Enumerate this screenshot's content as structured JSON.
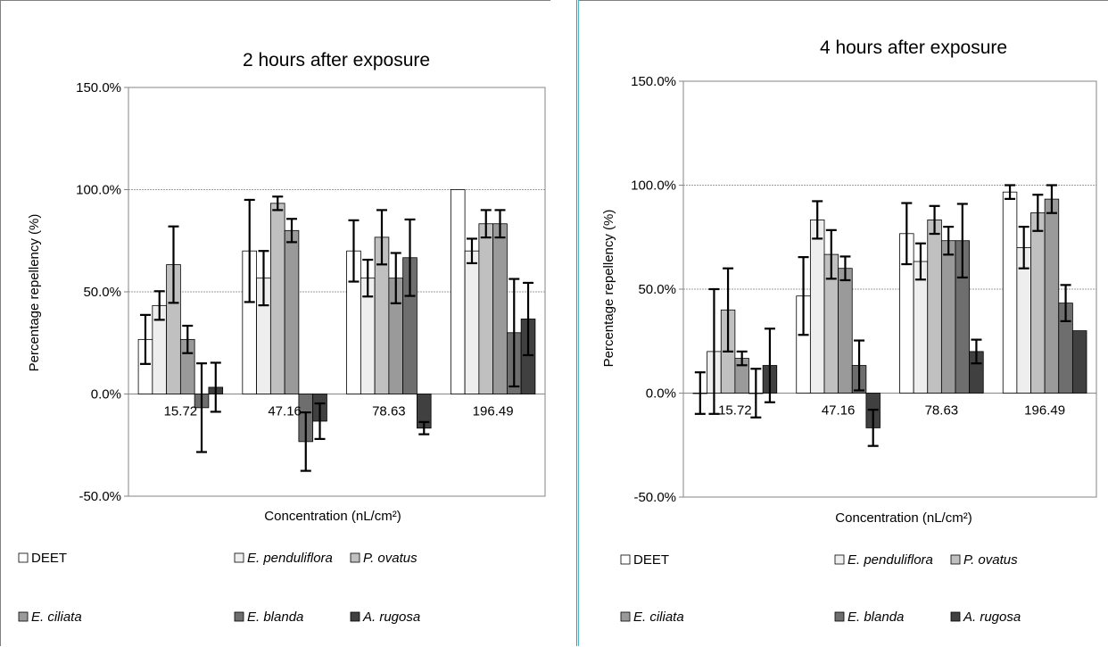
{
  "chart_data": [
    {
      "type": "bar",
      "title": "2 hours after exposure",
      "xlabel": "Concentration (nL/cm²)",
      "ylabel": "Percentage repellency (%)",
      "ylim": [
        -0.5,
        1.5
      ],
      "yticks": [
        "-50.0%",
        "0.0%",
        "50.0%",
        "100.0%",
        "150.0%"
      ],
      "categories": [
        "15.72",
        "47.16",
        "78.63",
        "196.49"
      ],
      "series": [
        {
          "name": "DEET",
          "values": [
            0.267,
            0.7,
            0.7,
            1.0
          ],
          "errors": [
            0.12,
            0.25,
            0.15,
            0.0
          ],
          "color": "#ffffff"
        },
        {
          "name": "E. penduliflora",
          "values": [
            0.433,
            0.567,
            0.567,
            0.7
          ],
          "errors": [
            0.07,
            0.133,
            0.09,
            0.06
          ],
          "color": "#eeeeee"
        },
        {
          "name": "P. ovatus",
          "values": [
            0.633,
            0.933,
            0.767,
            0.833
          ],
          "errors": [
            0.187,
            0.033,
            0.133,
            0.067
          ],
          "color": "#c0c0c0"
        },
        {
          "name": "E. ciliata",
          "values": [
            0.267,
            0.8,
            0.567,
            0.833
          ],
          "errors": [
            0.067,
            0.057,
            0.123,
            0.067
          ],
          "color": "#9a9a9a"
        },
        {
          "name": "E. blanda",
          "values": [
            -0.067,
            -0.233,
            0.667,
            0.3
          ],
          "errors": [
            0.217,
            0.143,
            0.187,
            0.263
          ],
          "color": "#6e6e6e"
        },
        {
          "name": "A. rugosa",
          "values": [
            0.033,
            -0.133,
            -0.167,
            0.367
          ],
          "errors": [
            0.12,
            0.087,
            0.03,
            0.177
          ],
          "color": "#404040"
        }
      ],
      "legend": "bottom",
      "grid": true
    },
    {
      "type": "bar",
      "title": "4 hours after exposure",
      "xlabel": "Concentration (nL/cm²)",
      "ylabel": "Percentage repellency (%)",
      "ylim": [
        -0.5,
        1.5
      ],
      "yticks": [
        "-50.0%",
        "0.0%",
        "50.0%",
        "100.0%",
        "150.0%"
      ],
      "categories": [
        "15.72",
        "47.16",
        "78.63",
        "196.49"
      ],
      "series": [
        {
          "name": "DEET",
          "values": [
            0.0,
            0.467,
            0.767,
            0.967
          ],
          "errors": [
            0.1,
            0.187,
            0.147,
            0.033
          ],
          "color": "#ffffff"
        },
        {
          "name": "E. penduliflora",
          "values": [
            0.2,
            0.833,
            0.633,
            0.7
          ],
          "errors": [
            0.3,
            0.09,
            0.087,
            0.1
          ],
          "color": "#eeeeee"
        },
        {
          "name": "P. ovatus",
          "values": [
            0.4,
            0.667,
            0.833,
            0.867
          ],
          "errors": [
            0.2,
            0.117,
            0.067,
            0.087
          ],
          "color": "#c0c0c0"
        },
        {
          "name": "E. ciliata",
          "values": [
            0.167,
            0.6,
            0.733,
            0.933
          ],
          "errors": [
            0.033,
            0.057,
            0.067,
            0.067
          ],
          "color": "#9a9a9a"
        },
        {
          "name": "E. blanda",
          "values": [
            0.0,
            0.133,
            0.733,
            0.433
          ],
          "errors": [
            0.117,
            0.12,
            0.177,
            0.087
          ],
          "color": "#6e6e6e"
        },
        {
          "name": "A. rugosa",
          "values": [
            0.133,
            -0.167,
            0.2,
            0.3
          ],
          "errors": [
            0.177,
            0.087,
            0.057,
            0.0
          ],
          "color": "#404040"
        }
      ],
      "legend": "bottom",
      "grid": true
    }
  ]
}
